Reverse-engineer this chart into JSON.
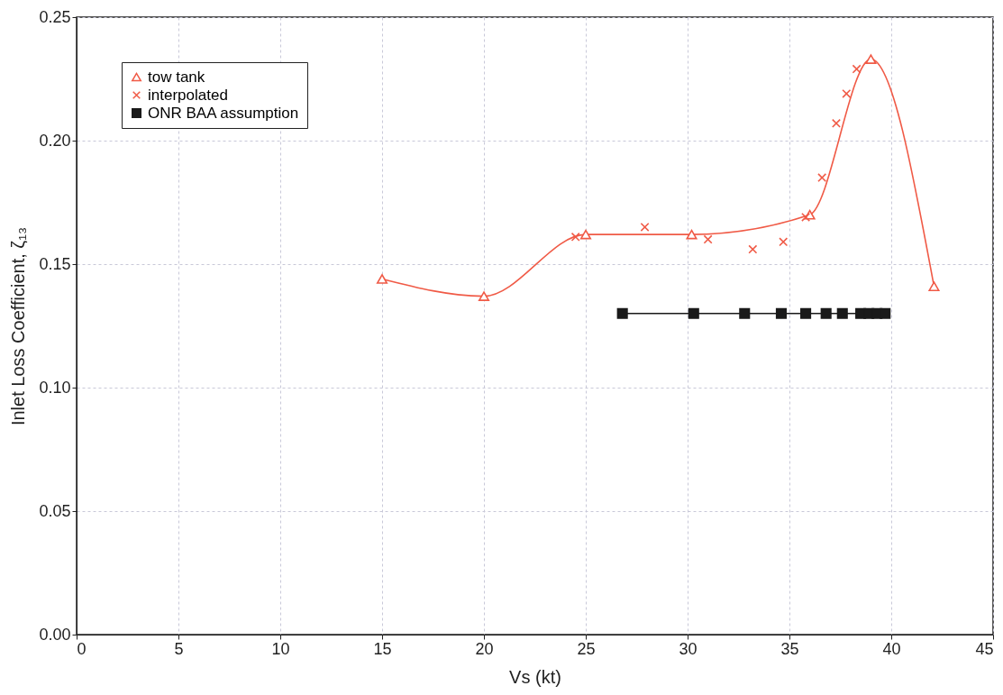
{
  "chart_data": {
    "type": "line",
    "xlabel": "Vs (kt)",
    "ylabel": "Inlet Loss Coefficient, ζ₁₃",
    "xlim": [
      0,
      45
    ],
    "xticks": [
      0,
      5,
      10,
      15,
      20,
      25,
      30,
      35,
      40,
      45
    ],
    "ylim": [
      0,
      0.25
    ],
    "yticks": [
      {
        "value": 0,
        "label": "0.00"
      },
      {
        "value": 0.05,
        "label": "0.05"
      },
      {
        "value": 0.1,
        "label": "0.10"
      },
      {
        "value": 0.15,
        "label": "0.15"
      },
      {
        "value": 0.2,
        "label": "0.20"
      },
      {
        "value": 0.25,
        "label": "0.25"
      }
    ],
    "grid": true,
    "legend": "top left",
    "series": [
      {
        "name": "tow tank",
        "type": "line",
        "marker": "triangle",
        "line_style": "solid",
        "color": "#f05a46",
        "x": [
          15,
          20,
          25,
          30.2,
          36,
          39,
          42.1
        ],
        "values": [
          0.144,
          0.137,
          0.162,
          0.162,
          0.17,
          0.233,
          0.141
        ]
      },
      {
        "name": "interpolated",
        "type": "scatter",
        "marker": "cross",
        "color": "#f05a46",
        "x": [
          24.5,
          27.9,
          31,
          33.2,
          34.7,
          35.8,
          36.6,
          37.3,
          37.8,
          38.3
        ],
        "values": [
          0.161,
          0.165,
          0.16,
          0.156,
          0.159,
          0.169,
          0.185,
          0.207,
          0.219,
          0.229
        ]
      },
      {
        "name": "ONR BAA assumption",
        "type": "line",
        "marker": "square",
        "line_style": "solid",
        "color": "#1a1a1a",
        "x": [
          26.8,
          30.3,
          32.8,
          34.6,
          35.8,
          36.8,
          37.6,
          38.5,
          38.9,
          39.3,
          39.7
        ],
        "values": [
          0.13,
          0.13,
          0.13,
          0.13,
          0.13,
          0.13,
          0.13,
          0.13,
          0.13,
          0.13,
          0.13
        ]
      }
    ]
  }
}
